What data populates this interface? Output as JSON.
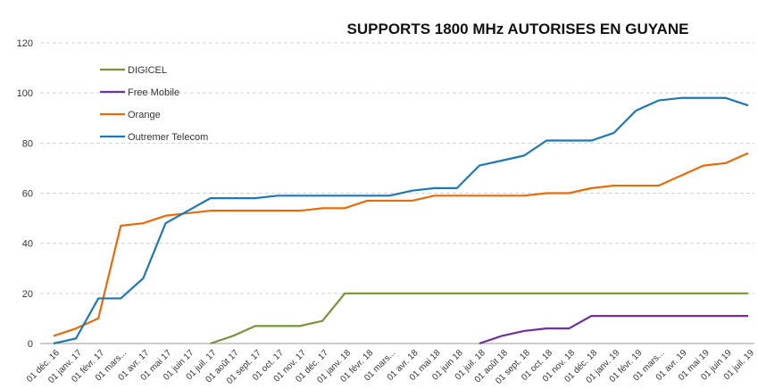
{
  "chart_data": {
    "type": "line",
    "title": "SUPPORTS 1800 MHz AUTORISES EN GUYANE",
    "categories": [
      "01 déc. 16",
      "01 janv. 17",
      "01 févr. 17",
      "01 mars...",
      "01 avr. 17",
      "01 mai 17",
      "01 juin 17",
      "01 juil. 17",
      "01 août 17",
      "01 sept. 17",
      "01 oct. 17",
      "01 nov. 17",
      "01 déc. 17",
      "01 janv. 18",
      "01 févr. 18",
      "01 mars...",
      "01 avr. 18",
      "01 mai 18",
      "01 juin 18",
      "01 juil. 18",
      "01 août 18",
      "01 sept. 18",
      "01 oct. 18",
      "01 nov. 18",
      "01 déc. 18",
      "01 janv. 19",
      "01 févr. 19",
      "01 mars...",
      "01 avr. 19",
      "01 mai 19",
      "01 juin 19",
      "01 juil. 19"
    ],
    "series": [
      {
        "name": "DIGICEL",
        "color": "#77933c",
        "values": [
          null,
          null,
          null,
          null,
          null,
          null,
          null,
          0,
          3,
          7,
          7,
          7,
          9,
          20,
          20,
          20,
          20,
          20,
          20,
          20,
          20,
          20,
          20,
          20,
          20,
          20,
          20,
          20,
          20,
          20,
          20,
          20
        ]
      },
      {
        "name": "Free Mobile",
        "color": "#7030a0",
        "values": [
          null,
          null,
          null,
          null,
          null,
          null,
          null,
          null,
          null,
          null,
          null,
          null,
          null,
          null,
          null,
          null,
          null,
          null,
          null,
          0,
          3,
          5,
          6,
          6,
          11,
          11,
          11,
          11,
          11,
          11,
          11,
          11
        ]
      },
      {
        "name": "Orange",
        "color": "#e46c0a",
        "values": [
          3,
          6,
          10,
          47,
          48,
          51,
          52,
          53,
          53,
          53,
          53,
          53,
          54,
          54,
          57,
          57,
          57,
          59,
          59,
          59,
          59,
          59,
          60,
          60,
          62,
          63,
          63,
          63,
          67,
          71,
          72,
          76
        ]
      },
      {
        "name": "Outremer Telecom",
        "color": "#1f77b4",
        "values": [
          0,
          2,
          18,
          18,
          26,
          48,
          53,
          58,
          58,
          58,
          59,
          59,
          59,
          59,
          59,
          59,
          61,
          62,
          62,
          71,
          73,
          75,
          81,
          81,
          81,
          84,
          93,
          97,
          98,
          98,
          98,
          95
        ]
      }
    ],
    "ylim": [
      0,
      120
    ],
    "yticks": [
      0,
      20,
      40,
      60,
      80,
      100,
      120
    ],
    "grid": true,
    "legend": "upper left"
  }
}
